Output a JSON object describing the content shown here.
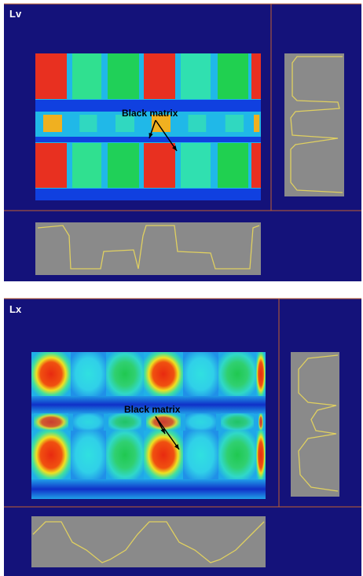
{
  "panels": [
    {
      "label": "Lv",
      "annotation": "Black matrix"
    },
    {
      "label": "Lx",
      "annotation": "Black matrix"
    }
  ]
}
